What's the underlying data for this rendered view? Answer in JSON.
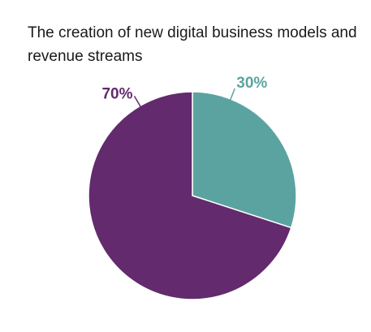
{
  "chart_data": {
    "type": "pie",
    "title": "The creation of new digital business models and revenue streams",
    "categories": [
      "",
      ""
    ],
    "values": [
      30,
      70
    ],
    "labels": [
      "30%",
      "70%"
    ],
    "colors": [
      "#5ba3a0",
      "#632a6e"
    ],
    "start_angle_deg": 0,
    "direction": "clockwise",
    "legend": "none"
  }
}
